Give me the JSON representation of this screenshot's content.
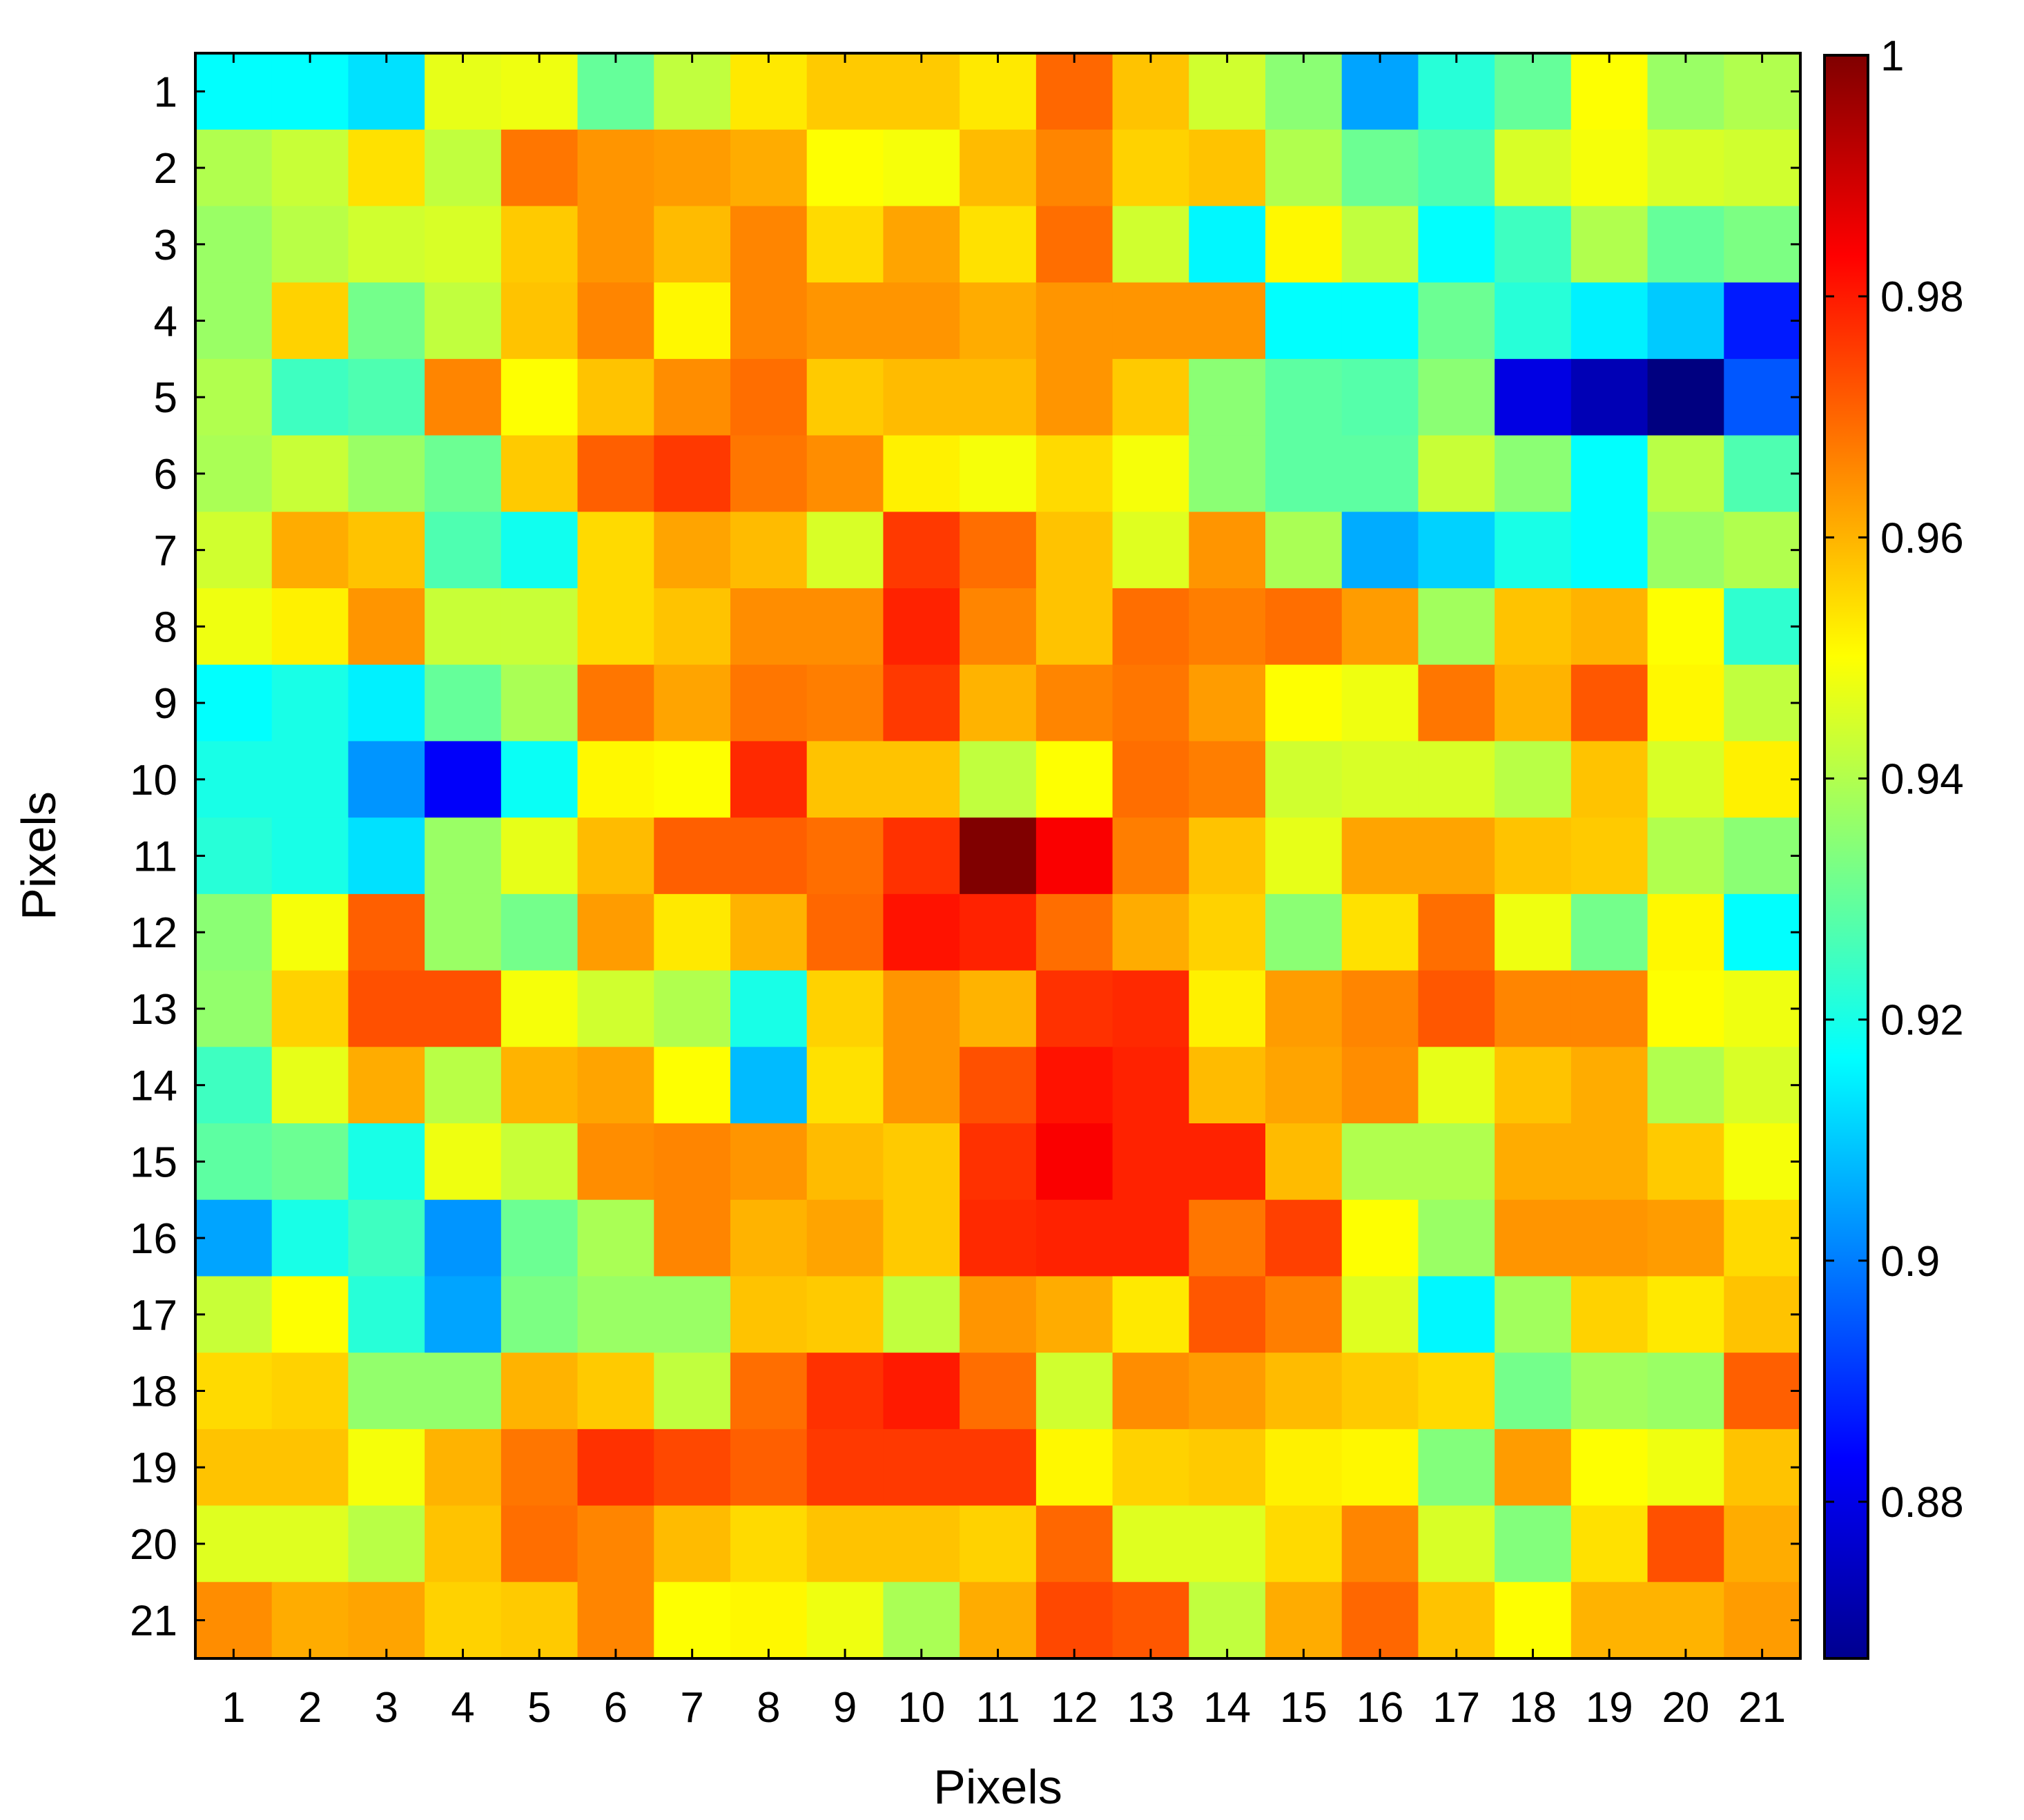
{
  "chart_data": {
    "type": "heatmap",
    "title": "",
    "xlabel": "Pixels",
    "ylabel": "Pixels",
    "x_categories": [
      "1",
      "2",
      "3",
      "4",
      "5",
      "6",
      "7",
      "8",
      "9",
      "10",
      "11",
      "12",
      "13",
      "14",
      "15",
      "16",
      "17",
      "18",
      "19",
      "20",
      "21"
    ],
    "y_categories": [
      "1",
      "2",
      "3",
      "4",
      "5",
      "6",
      "7",
      "8",
      "9",
      "10",
      "11",
      "12",
      "13",
      "14",
      "15",
      "16",
      "17",
      "18",
      "19",
      "20",
      "21"
    ],
    "colormap": "jet",
    "value_range": [
      0.867,
      1.0
    ],
    "colorbar_ticks": [
      {
        "value": 1.0,
        "label": "1"
      },
      {
        "value": 0.98,
        "label": "0.98"
      },
      {
        "value": 0.96,
        "label": "0.96"
      },
      {
        "value": 0.94,
        "label": "0.94"
      },
      {
        "value": 0.92,
        "label": "0.92"
      },
      {
        "value": 0.9,
        "label": "0.9"
      },
      {
        "value": 0.88,
        "label": "0.88"
      }
    ],
    "colorbar_placement": "right",
    "grid": false,
    "values": [
      [
        0.917,
        0.917,
        0.913,
        0.947,
        0.948,
        0.93,
        0.942,
        0.953,
        0.957,
        0.957,
        0.953,
        0.97,
        0.958,
        0.944,
        0.935,
        0.905,
        0.922,
        0.93,
        0.95,
        0.937,
        0.94
      ],
      [
        0.94,
        0.943,
        0.954,
        0.942,
        0.968,
        0.964,
        0.963,
        0.961,
        0.95,
        0.949,
        0.959,
        0.966,
        0.956,
        0.958,
        0.94,
        0.931,
        0.927,
        0.945,
        0.949,
        0.945,
        0.944
      ],
      [
        0.937,
        0.941,
        0.944,
        0.945,
        0.957,
        0.964,
        0.959,
        0.966,
        0.955,
        0.962,
        0.954,
        0.969,
        0.944,
        0.916,
        0.951,
        0.942,
        0.917,
        0.925,
        0.94,
        0.93,
        0.933
      ],
      [
        0.937,
        0.956,
        0.932,
        0.942,
        0.958,
        0.966,
        0.951,
        0.966,
        0.964,
        0.964,
        0.961,
        0.964,
        0.964,
        0.964,
        0.917,
        0.917,
        0.931,
        0.922,
        0.915,
        0.91,
        0.887
      ],
      [
        0.94,
        0.925,
        0.927,
        0.966,
        0.95,
        0.958,
        0.965,
        0.969,
        0.957,
        0.959,
        0.959,
        0.964,
        0.957,
        0.935,
        0.929,
        0.928,
        0.935,
        0.88,
        0.874,
        0.867,
        0.895
      ],
      [
        0.939,
        0.943,
        0.937,
        0.931,
        0.957,
        0.971,
        0.976,
        0.968,
        0.965,
        0.952,
        0.949,
        0.955,
        0.949,
        0.935,
        0.929,
        0.929,
        0.943,
        0.935,
        0.917,
        0.941,
        0.927
      ],
      [
        0.944,
        0.961,
        0.958,
        0.927,
        0.919,
        0.955,
        0.962,
        0.959,
        0.945,
        0.976,
        0.969,
        0.958,
        0.946,
        0.964,
        0.939,
        0.906,
        0.911,
        0.92,
        0.917,
        0.937,
        0.94
      ],
      [
        0.948,
        0.952,
        0.964,
        0.943,
        0.943,
        0.955,
        0.958,
        0.965,
        0.965,
        0.979,
        0.966,
        0.958,
        0.969,
        0.967,
        0.969,
        0.963,
        0.938,
        0.958,
        0.96,
        0.95,
        0.923
      ],
      [
        0.917,
        0.92,
        0.915,
        0.93,
        0.939,
        0.968,
        0.962,
        0.968,
        0.967,
        0.976,
        0.96,
        0.966,
        0.968,
        0.963,
        0.95,
        0.948,
        0.968,
        0.96,
        0.972,
        0.951,
        0.942
      ],
      [
        0.92,
        0.92,
        0.903,
        0.883,
        0.918,
        0.951,
        0.95,
        0.978,
        0.958,
        0.958,
        0.942,
        0.95,
        0.969,
        0.967,
        0.944,
        0.945,
        0.945,
        0.941,
        0.958,
        0.945,
        0.952
      ],
      [
        0.922,
        0.92,
        0.913,
        0.937,
        0.947,
        0.959,
        0.971,
        0.971,
        0.969,
        0.977,
        1.0,
        0.984,
        0.967,
        0.958,
        0.947,
        0.962,
        0.962,
        0.958,
        0.957,
        0.94,
        0.935
      ],
      [
        0.935,
        0.949,
        0.971,
        0.937,
        0.932,
        0.963,
        0.953,
        0.96,
        0.97,
        0.981,
        0.979,
        0.969,
        0.961,
        0.956,
        0.935,
        0.954,
        0.969,
        0.948,
        0.932,
        0.951,
        0.917
      ],
      [
        0.936,
        0.956,
        0.973,
        0.973,
        0.949,
        0.944,
        0.94,
        0.92,
        0.956,
        0.964,
        0.96,
        0.977,
        0.978,
        0.952,
        0.963,
        0.966,
        0.972,
        0.966,
        0.966,
        0.95,
        0.948
      ],
      [
        0.925,
        0.947,
        0.961,
        0.941,
        0.96,
        0.962,
        0.95,
        0.908,
        0.954,
        0.964,
        0.973,
        0.981,
        0.979,
        0.959,
        0.962,
        0.965,
        0.947,
        0.958,
        0.961,
        0.94,
        0.945
      ],
      [
        0.929,
        0.931,
        0.92,
        0.948,
        0.943,
        0.965,
        0.966,
        0.964,
        0.959,
        0.957,
        0.977,
        0.984,
        0.979,
        0.979,
        0.959,
        0.94,
        0.94,
        0.961,
        0.961,
        0.957,
        0.949
      ],
      [
        0.905,
        0.92,
        0.925,
        0.903,
        0.931,
        0.939,
        0.966,
        0.96,
        0.962,
        0.957,
        0.978,
        0.979,
        0.979,
        0.968,
        0.975,
        0.95,
        0.937,
        0.964,
        0.964,
        0.963,
        0.955
      ],
      [
        0.943,
        0.95,
        0.922,
        0.905,
        0.933,
        0.937,
        0.937,
        0.958,
        0.957,
        0.942,
        0.964,
        0.961,
        0.953,
        0.972,
        0.967,
        0.946,
        0.916,
        0.938,
        0.956,
        0.953,
        0.958
      ],
      [
        0.955,
        0.956,
        0.936,
        0.936,
        0.96,
        0.957,
        0.942,
        0.969,
        0.977,
        0.98,
        0.969,
        0.944,
        0.965,
        0.963,
        0.959,
        0.957,
        0.955,
        0.932,
        0.938,
        0.937,
        0.971
      ],
      [
        0.958,
        0.958,
        0.949,
        0.96,
        0.968,
        0.977,
        0.974,
        0.971,
        0.976,
        0.976,
        0.976,
        0.951,
        0.956,
        0.957,
        0.952,
        0.951,
        0.934,
        0.963,
        0.95,
        0.948,
        0.958
      ],
      [
        0.946,
        0.946,
        0.941,
        0.958,
        0.969,
        0.966,
        0.959,
        0.955,
        0.958,
        0.958,
        0.956,
        0.97,
        0.946,
        0.946,
        0.955,
        0.966,
        0.945,
        0.934,
        0.954,
        0.973,
        0.961
      ],
      [
        0.965,
        0.961,
        0.962,
        0.956,
        0.957,
        0.966,
        0.95,
        0.951,
        0.948,
        0.939,
        0.961,
        0.974,
        0.972,
        0.942,
        0.961,
        0.97,
        0.958,
        0.95,
        0.96,
        0.96,
        0.963
      ]
    ]
  }
}
